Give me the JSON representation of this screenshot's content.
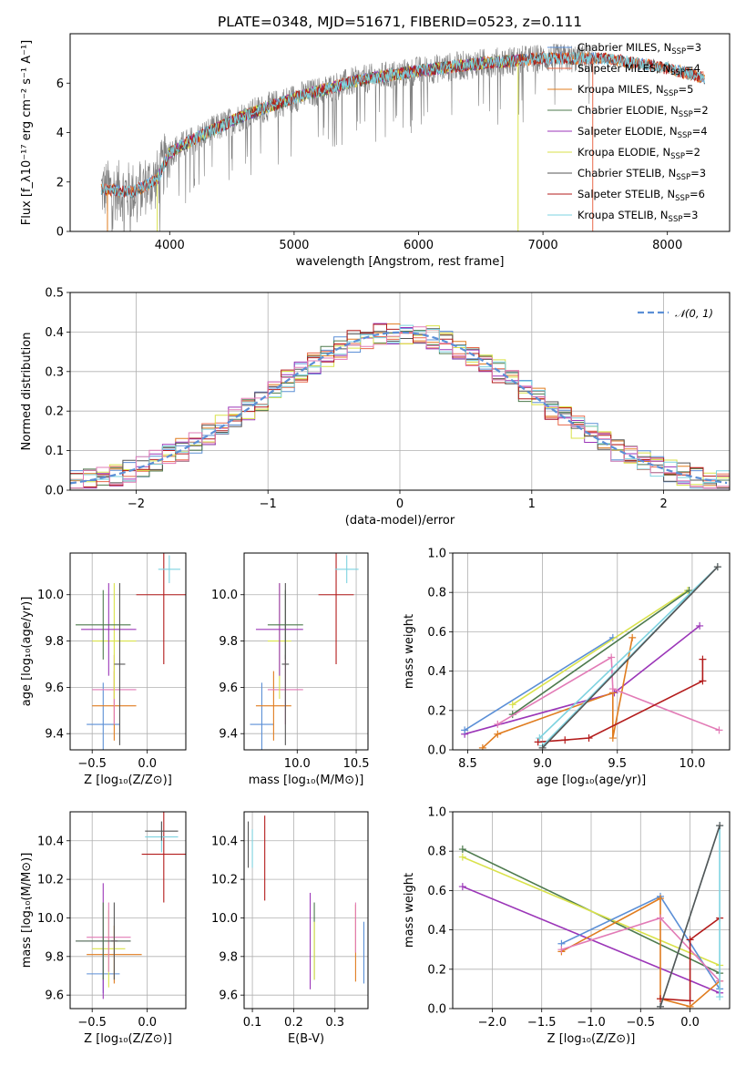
{
  "title": "PLATE=0348, MJD=51671, FIBERID=0523, z=0.111",
  "colors": {
    "Chabrier MILES": "#5b8fd6",
    "Salpeter MILES": "#e8684a",
    "Kroupa MILES": "#e07c1f",
    "Chabrier ELODIE": "#4d7a4d",
    "Salpeter ELODIE": "#9b36b8",
    "Kroupa ELODIE": "#d9e24a",
    "Chabrier STELIB": "#555555",
    "Salpeter STELIB": "#b31b1b",
    "Kroupa STELIB": "#7ed3e0",
    "observed": "#808080",
    "pink": "#e27bb6",
    "gauss": "#5b8fd6"
  },
  "chart_data": [
    {
      "id": "spectrum",
      "type": "line",
      "title": "PLATE=0348, MJD=51671, FIBERID=0523, z=0.111",
      "xlabel": "wavelength [Angstrom, rest frame]",
      "ylabel": "Flux [f_λ10⁻¹⁷ erg cm⁻² s⁻¹ A⁻¹]",
      "xlim": [
        3200,
        8500
      ],
      "ylim": [
        0,
        8
      ],
      "xticks": [
        4000,
        5000,
        6000,
        7000,
        8000
      ],
      "yticks": [
        0,
        2,
        4,
        6
      ],
      "grid": false,
      "legend_position": "top-right",
      "legend": [
        {
          "prefix": "Chabrier MILES, N",
          "sub": "SSP",
          "suffix": "=3"
        },
        {
          "prefix": "Salpeter MILES, N",
          "sub": "SSP",
          "suffix": "=4"
        },
        {
          "prefix": "Kroupa MILES, N",
          "sub": "SSP",
          "suffix": "=5"
        },
        {
          "prefix": "Chabrier ELODIE, N",
          "sub": "SSP",
          "suffix": "=2"
        },
        {
          "prefix": "Salpeter ELODIE, N",
          "sub": "SSP",
          "suffix": "=4"
        },
        {
          "prefix": "Kroupa ELODIE, N",
          "sub": "SSP",
          "suffix": "=2"
        },
        {
          "prefix": "Chabrier STELIB, N",
          "sub": "SSP",
          "suffix": "=3"
        },
        {
          "prefix": "Salpeter STELIB, N",
          "sub": "SSP",
          "suffix": "=6"
        },
        {
          "prefix": "Kroupa STELIB, N",
          "sub": "SSP",
          "suffix": "=3"
        }
      ],
      "continuum": {
        "x": [
          3450,
          3700,
          3900,
          4000,
          4300,
          4600,
          5000,
          5500,
          6000,
          6500,
          7000,
          7500,
          8000,
          8300
        ],
        "y": [
          1.7,
          1.6,
          2.1,
          3.2,
          4.0,
          4.7,
          5.4,
          6.1,
          6.5,
          6.8,
          7.0,
          7.0,
          6.6,
          6.2
        ]
      }
    },
    {
      "id": "residuals",
      "type": "histogram",
      "xlabel": "(data-model)/error",
      "ylabel": "Normed distribution",
      "xlim": [
        -2.5,
        2.5
      ],
      "ylim": [
        0,
        0.5
      ],
      "xticks": [
        -2,
        -1,
        0,
        1,
        2
      ],
      "xticklabels": [
        "−2",
        "−1",
        "0",
        "1",
        "2"
      ],
      "yticks": [
        0.0,
        0.1,
        0.2,
        0.3,
        0.4,
        0.5
      ],
      "grid": true,
      "legend": "𝒩(0, 1)",
      "legend_position": "top-right",
      "bin_width": 0.1
    },
    {
      "id": "age_vs_Z",
      "type": "errorbar",
      "xlabel": "Z [log₁₀(Z/Z⊙)]",
      "ylabel": "age  [log₁₀(age/yr)]",
      "xlim": [
        -0.7,
        0.35
      ],
      "ylim": [
        9.33,
        10.18
      ],
      "xticks": [
        -0.5,
        0.0
      ],
      "xticklabels": [
        "−0.5",
        "0.0"
      ],
      "yticks": [
        9.4,
        9.6,
        9.8,
        10.0
      ],
      "grid": true,
      "points": [
        {
          "s": "Chabrier MILES",
          "x": -0.4,
          "xerr": 0.15,
          "y": 9.44,
          "yerr": 0.18
        },
        {
          "s": "Kroupa MILES",
          "x": -0.3,
          "xerr": 0.2,
          "y": 9.52,
          "yerr": 0.15
        },
        {
          "s": "pink",
          "x": -0.3,
          "xerr": 0.2,
          "y": 9.59,
          "yerr": 0.15
        },
        {
          "s": "Kroupa ELODIE",
          "x": -0.3,
          "xerr": 0.2,
          "y": 9.8,
          "yerr": 0.25
        },
        {
          "s": "Salpeter ELODIE",
          "x": -0.35,
          "xerr": 0.25,
          "y": 9.85,
          "yerr": 0.2
        },
        {
          "s": "Chabrier ELODIE",
          "x": -0.4,
          "xerr": 0.25,
          "y": 9.87,
          "yerr": 0.15
        },
        {
          "s": "Chabrier STELIB",
          "x": -0.25,
          "xerr": 0.05,
          "y": 9.7,
          "yerr": 0.35
        },
        {
          "s": "Salpeter STELIB",
          "x": 0.15,
          "xerr": 0.25,
          "y": 10.0,
          "yerr": 0.3
        },
        {
          "s": "Kroupa STELIB",
          "x": 0.2,
          "xerr": 0.1,
          "y": 10.11,
          "yerr": 0.06
        }
      ]
    },
    {
      "id": "age_vs_mass",
      "type": "errorbar",
      "xlabel": "mass [log₁₀(M/M⊙)]",
      "ylabel": "",
      "xlim": [
        9.55,
        10.6
      ],
      "ylim": [
        9.33,
        10.18
      ],
      "xticks": [
        10.0,
        10.5
      ],
      "xticklabels": [
        "10.0",
        "10.5"
      ],
      "yticks": [
        9.4,
        9.6,
        9.8,
        10.0
      ],
      "grid": true,
      "points": [
        {
          "s": "Chabrier MILES",
          "x": 9.7,
          "xerr": 0.1,
          "y": 9.44,
          "yerr": 0.18
        },
        {
          "s": "Kroupa MILES",
          "x": 9.8,
          "xerr": 0.15,
          "y": 9.52,
          "yerr": 0.15
        },
        {
          "s": "pink",
          "x": 9.9,
          "xerr": 0.15,
          "y": 9.59,
          "yerr": 0.15
        },
        {
          "s": "Kroupa ELODIE",
          "x": 9.85,
          "xerr": 0.1,
          "y": 9.8,
          "yerr": 0.25
        },
        {
          "s": "Salpeter ELODIE",
          "x": 9.85,
          "xerr": 0.2,
          "y": 9.85,
          "yerr": 0.2
        },
        {
          "s": "Chabrier ELODIE",
          "x": 9.9,
          "xerr": 0.15,
          "y": 9.87,
          "yerr": 0.15
        },
        {
          "s": "Chabrier STELIB",
          "x": 9.9,
          "xerr": 0.03,
          "y": 9.7,
          "yerr": 0.35
        },
        {
          "s": "Salpeter STELIB",
          "x": 10.33,
          "xerr": 0.15,
          "y": 10.0,
          "yerr": 0.3
        },
        {
          "s": "Kroupa STELIB",
          "x": 10.42,
          "xerr": 0.1,
          "y": 10.11,
          "yerr": 0.06
        }
      ]
    },
    {
      "id": "weight_vs_age",
      "type": "line",
      "xlabel": "age  [log₁₀(age/yr)]",
      "ylabel": "mass weight",
      "xlim": [
        8.4,
        10.25
      ],
      "ylim": [
        0,
        1.0
      ],
      "xticks": [
        8.5,
        9.0,
        9.5,
        10.0
      ],
      "yticks": [
        0.0,
        0.2,
        0.4,
        0.6,
        0.8,
        1.0
      ],
      "grid": true,
      "series": [
        {
          "s": "Salpeter ELODIE",
          "x": [
            8.48,
            9.48,
            10.05
          ],
          "y": [
            0.08,
            0.29,
            0.63
          ]
        },
        {
          "s": "Chabrier MILES",
          "x": [
            8.48,
            9.47
          ],
          "y": [
            0.1,
            0.57
          ]
        },
        {
          "s": "Kroupa ELODIE",
          "x": [
            8.8,
            9.97
          ],
          "y": [
            0.23,
            0.81
          ]
        },
        {
          "s": "Chabrier ELODIE",
          "x": [
            8.8,
            9.98
          ],
          "y": [
            0.18,
            0.81
          ]
        },
        {
          "s": "Kroupa MILES",
          "x": [
            8.6,
            8.7,
            9.47,
            9.47,
            9.6
          ],
          "y": [
            0.01,
            0.08,
            0.29,
            0.06,
            0.57
          ]
        },
        {
          "s": "pink",
          "x": [
            8.7,
            9.46,
            9.47,
            10.18
          ],
          "y": [
            0.13,
            0.47,
            0.31,
            0.1
          ]
        },
        {
          "s": "Salpeter STELIB",
          "x": [
            8.97,
            9.15,
            9.31,
            10.07,
            10.07
          ],
          "y": [
            0.04,
            0.05,
            0.06,
            0.35,
            0.46
          ]
        },
        {
          "s": "Kroupa STELIB",
          "x": [
            8.98,
            10.17,
            9.0
          ],
          "y": [
            0.06,
            0.93,
            0.02
          ]
        },
        {
          "s": "Chabrier STELIB",
          "x": [
            9.0,
            10.17
          ],
          "y": [
            0.01,
            0.93
          ]
        }
      ]
    },
    {
      "id": "mass_vs_Z",
      "type": "errorbar",
      "xlabel": "Z [log₁₀(Z/Z⊙)]",
      "ylabel": "mass [log₁₀(M/M⊙)]",
      "xlim": [
        -0.7,
        0.35
      ],
      "ylim": [
        9.53,
        10.55
      ],
      "xticks": [
        -0.5,
        0.0
      ],
      "xticklabels": [
        "−0.5",
        "0.0"
      ],
      "yticks": [
        9.6,
        9.8,
        10.0,
        10.2,
        10.4
      ],
      "grid": true,
      "points": [
        {
          "s": "Chabrier MILES",
          "x": -0.4,
          "xerr": 0.15,
          "y": 9.71,
          "yerr": 0.1
        },
        {
          "s": "Kroupa MILES",
          "x": -0.3,
          "xerr": 0.25,
          "y": 9.81,
          "yerr": 0.15
        },
        {
          "s": "Kroupa ELODIE",
          "x": -0.35,
          "xerr": 0.15,
          "y": 9.84,
          "yerr": 0.2
        },
        {
          "s": "pink",
          "x": -0.35,
          "xerr": 0.2,
          "y": 9.9,
          "yerr": 0.18
        },
        {
          "s": "Salpeter ELODIE",
          "x": -0.4,
          "xerr": 0.25,
          "y": 9.88,
          "yerr": 0.3
        },
        {
          "s": "Chabrier ELODIE",
          "x": -0.4,
          "xerr": 0.25,
          "y": 9.88,
          "yerr": 0.2
        },
        {
          "s": "Chabrier STELIB",
          "x": -0.3,
          "xerr": 0.03,
          "y": 9.88,
          "yerr": 0.2
        },
        {
          "s": "Salpeter STELIB",
          "x": 0.15,
          "xerr": 0.2,
          "y": 10.33,
          "yerr": 0.25
        },
        {
          "s": "Kroupa STELIB",
          "x": 0.13,
          "xerr": 0.15,
          "y": 10.42,
          "yerr": 0.08
        },
        {
          "s": "Chabrier STELIB",
          "x": 0.13,
          "xerr": 0.15,
          "y": 10.45,
          "yerr": 0.05
        }
      ]
    },
    {
      "id": "mass_vs_EBV",
      "type": "errorbar",
      "xlabel": "E(B-V)",
      "ylabel": "",
      "xlim": [
        0.08,
        0.38
      ],
      "ylim": [
        9.53,
        10.55
      ],
      "xticks": [
        0.1,
        0.2,
        0.3
      ],
      "yticks": [
        9.6,
        9.8,
        10.0,
        10.2,
        10.4
      ],
      "grid": true,
      "points": [
        {
          "s": "Chabrier STELIB",
          "x": 0.09,
          "xerr": 0,
          "y": 10.38,
          "yerr": 0.12
        },
        {
          "s": "Kroupa STELIB",
          "x": 0.1,
          "xerr": 0,
          "y": 10.36,
          "yerr": 0.1
        },
        {
          "s": "Salpeter STELIB",
          "x": 0.13,
          "xerr": 0,
          "y": 10.31,
          "yerr": 0.22
        },
        {
          "s": "Salpeter ELODIE",
          "x": 0.24,
          "xerr": 0,
          "y": 9.88,
          "yerr": 0.25
        },
        {
          "s": "Chabrier ELODIE",
          "x": 0.25,
          "xerr": 0,
          "y": 9.88,
          "yerr": 0.2
        },
        {
          "s": "Kroupa ELODIE",
          "x": 0.25,
          "xerr": 0,
          "y": 9.83,
          "yerr": 0.15
        },
        {
          "s": "Kroupa MILES",
          "x": 0.35,
          "xerr": 0,
          "y": 9.87,
          "yerr": 0.2
        },
        {
          "s": "pink",
          "x": 0.35,
          "xerr": 0,
          "y": 9.95,
          "yerr": 0.13
        },
        {
          "s": "Chabrier MILES",
          "x": 0.37,
          "xerr": 0,
          "y": 9.82,
          "yerr": 0.16
        }
      ]
    },
    {
      "id": "weight_vs_Z",
      "type": "line",
      "xlabel": "Z [log₁₀(Z/Z⊙)]",
      "ylabel": "mass weight",
      "xlim": [
        -2.4,
        0.4
      ],
      "ylim": [
        0,
        1.0
      ],
      "xticks": [
        -2.0,
        -1.5,
        -1.0,
        -0.5,
        0.0
      ],
      "xticklabels": [
        "−2.0",
        "−1.5",
        "−1.0",
        "−0.5",
        "0.0"
      ],
      "yticks": [
        0.0,
        0.2,
        0.4,
        0.6,
        0.8,
        1.0
      ],
      "grid": true,
      "series": [
        {
          "s": "Chabrier ELODIE",
          "x": [
            -2.3,
            0.3
          ],
          "y": [
            0.81,
            0.18
          ]
        },
        {
          "s": "Kroupa ELODIE",
          "x": [
            -2.3,
            0.3
          ],
          "y": [
            0.77,
            0.22
          ]
        },
        {
          "s": "Salpeter ELODIE",
          "x": [
            -2.3,
            0.3
          ],
          "y": [
            0.62,
            0.08
          ]
        },
        {
          "s": "Chabrier MILES",
          "x": [
            -1.3,
            -0.3,
            0.3
          ],
          "y": [
            0.33,
            0.57,
            0.1
          ]
        },
        {
          "s": "Kroupa MILES",
          "x": [
            -1.3,
            -0.3,
            -0.3,
            0.0,
            0.3
          ],
          "y": [
            0.29,
            0.56,
            0.05,
            0.01,
            0.14
          ]
        },
        {
          "s": "pink",
          "x": [
            -1.3,
            -0.3,
            0.3
          ],
          "y": [
            0.3,
            0.46,
            0.14
          ]
        },
        {
          "s": "Salpeter STELIB",
          "x": [
            -0.3,
            0.0,
            0.0,
            0.3
          ],
          "y": [
            0.05,
            0.04,
            0.35,
            0.46
          ]
        },
        {
          "s": "Kroupa STELIB",
          "x": [
            -0.3,
            0.3,
            0.3
          ],
          "y": [
            0.01,
            0.93,
            0.06
          ]
        },
        {
          "s": "Chabrier STELIB",
          "x": [
            -0.3,
            0.3
          ],
          "y": [
            0.01,
            0.93
          ]
        }
      ]
    }
  ]
}
